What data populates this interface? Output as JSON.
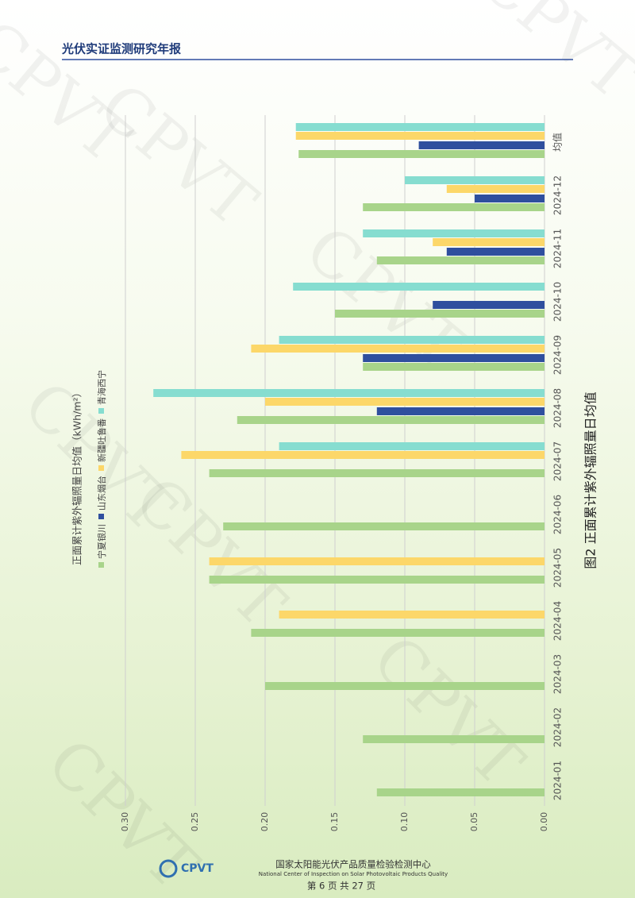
{
  "header": {
    "title": "光伏实证监测研究年报"
  },
  "watermark": "CPVT",
  "chart_data": {
    "type": "bar",
    "title": "图2 正面累计紫外辐照量日均值",
    "y_axis_label": "正面累计紫外辐照量日均值（kWh/m²）",
    "categories": [
      "2024-01",
      "2024-02",
      "2024-03",
      "2024-04",
      "2024-05",
      "2024-06",
      "2024-07",
      "2024-08",
      "2024-09",
      "2024-10",
      "2024-11",
      "2024-12",
      "均值"
    ],
    "series": [
      {
        "name": "宁夏银川",
        "color": "#a8d48a",
        "values": [
          0.12,
          0.13,
          0.2,
          0.21,
          0.24,
          0.23,
          0.24,
          0.22,
          0.13,
          0.15,
          0.12,
          0.13,
          0.176
        ]
      },
      {
        "name": "山东烟台",
        "color": "#2f4f9e",
        "values": [
          null,
          null,
          null,
          null,
          null,
          null,
          null,
          0.12,
          0.13,
          0.08,
          0.07,
          0.05,
          0.09
        ]
      },
      {
        "name": "新疆吐鲁番",
        "color": "#fcd769",
        "values": [
          null,
          null,
          null,
          0.19,
          0.24,
          null,
          0.26,
          0.2,
          0.21,
          null,
          0.08,
          0.07,
          0.178
        ]
      },
      {
        "name": "青海西宁",
        "color": "#86ddd0",
        "values": [
          null,
          null,
          null,
          null,
          null,
          null,
          0.19,
          0.28,
          0.19,
          0.18,
          0.13,
          0.1,
          0.178
        ]
      }
    ],
    "ylim": [
      0,
      0.3
    ],
    "yticks": [
      {
        "value": 0,
        "label": "0.00"
      },
      {
        "value": 0.05,
        "label": "0.05"
      },
      {
        "value": 0.1,
        "label": "0.10"
      },
      {
        "value": 0.15,
        "label": "0.15"
      },
      {
        "value": 0.2,
        "label": "0.20"
      },
      {
        "value": 0.25,
        "label": "0.25"
      },
      {
        "value": 0.3,
        "label": "0.30"
      }
    ],
    "grid": true
  },
  "footer": {
    "logo_text": "CPVT",
    "org_cn": "国家太阳能光伏产品质量检验检测中心",
    "org_en": "National Center of Inspection on Solar Photovoltaic Products Quality",
    "page": "第 6 页 共 27 页"
  }
}
